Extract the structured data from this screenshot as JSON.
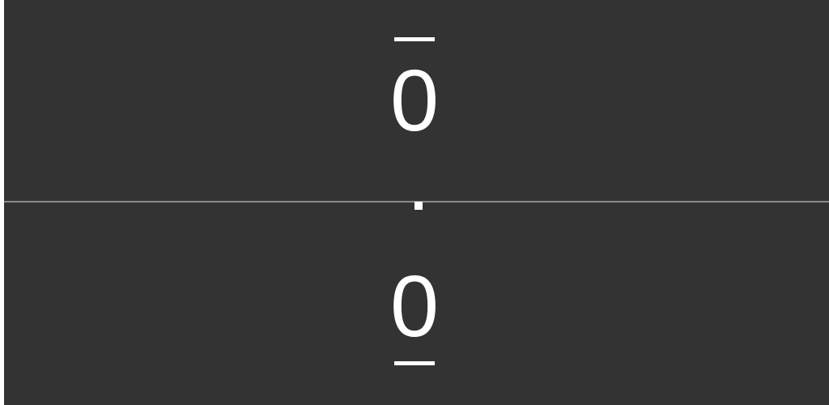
{
  "game": {
    "type": "pong",
    "colors": {
      "background": "#333333",
      "foreground": "#ffffff",
      "divider": "#8a8a8a"
    },
    "players": {
      "top": {
        "score": "0"
      },
      "bottom": {
        "score": "0"
      }
    }
  }
}
